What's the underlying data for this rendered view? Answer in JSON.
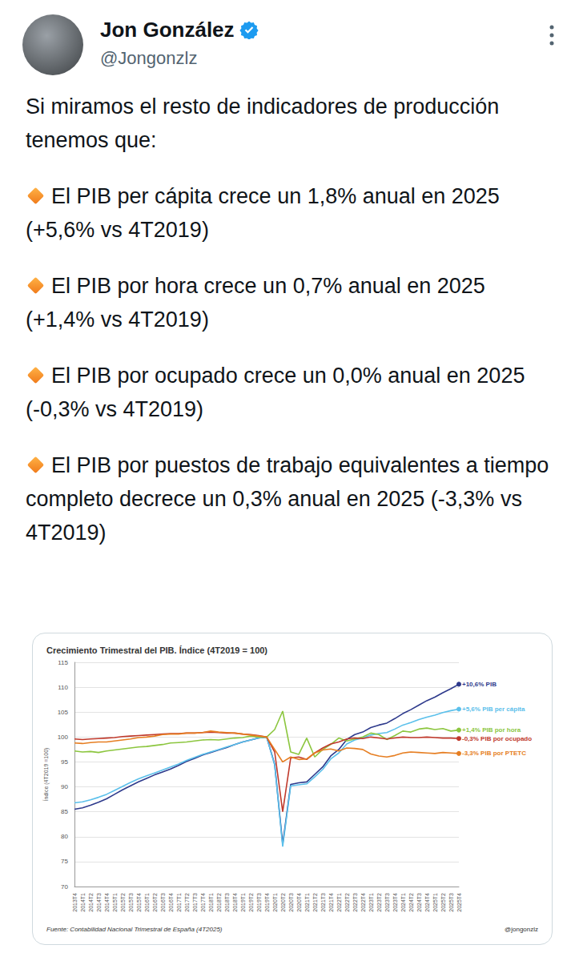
{
  "tweet": {
    "name": "Jon González",
    "handle": "@Jongonzlz",
    "intro": "Si miramos el resto de indicadores de producción tenemos que:",
    "bullets": [
      "El PIB per cápita crece un 1,8% anual en 2025 (+5,6% vs 4T2019)",
      "El PIB por hora crece un 0,7% anual en 2025 (+1,4% vs 4T2019)",
      "El PIB por ocupado crece un 0,0% anual en 2025 (-0,3% vs 4T2019)",
      "El PIB por puestos de trabajo equivalentes a tiempo completo decrece un 0,3% anual en 2025 (-3,3% vs 4T2019)"
    ]
  },
  "chart_data": {
    "type": "line",
    "title": "Crecimiento Trimestral del PIB. Índice (4T2019 = 100)",
    "ylabel": "Índice (4T2019 =100)",
    "annotations": [
      "Fuente: Contabilidad Nacional Trimestral de España (4T2025)",
      "@jongonzlz"
    ],
    "categories": [
      "2013T4",
      "2014T1",
      "2014T2",
      "2014T3",
      "2014T4",
      "2015T1",
      "2015T2",
      "2015T3",
      "2015T4",
      "2016T1",
      "2016T2",
      "2016T3",
      "2016T4",
      "2017T1",
      "2017T2",
      "2017T3",
      "2017T4",
      "2018T1",
      "2018T2",
      "2018T3",
      "2018T4",
      "2019T1",
      "2019T2",
      "2019T3",
      "2019T4",
      "2020T1",
      "2020T2",
      "2020T3",
      "2020T4",
      "2021T1",
      "2021T2",
      "2021T3",
      "2021T4",
      "2022T1",
      "2022T2",
      "2022T3",
      "2022T4",
      "2023T1",
      "2023T2",
      "2023T3",
      "2023T4",
      "2024T1",
      "2024T2",
      "2024T3",
      "2024T4",
      "2025T1",
      "2025T2",
      "2025T3",
      "2025T4"
    ],
    "series": [
      {
        "name": "+10,6% PIB",
        "color": "#2e3a8c",
        "values": [
          85.5,
          85.8,
          86.3,
          86.9,
          87.6,
          88.5,
          89.4,
          90.2,
          91.0,
          91.7,
          92.4,
          93.0,
          93.6,
          94.3,
          95.1,
          95.7,
          96.4,
          96.9,
          97.4,
          97.9,
          98.5,
          99.0,
          99.4,
          99.8,
          100,
          94.5,
          78.5,
          90.5,
          90.8,
          91.0,
          92.5,
          94.0,
          96.2,
          97.5,
          99.5,
          100.5,
          101.0,
          101.9,
          102.4,
          102.8,
          103.7,
          104.7,
          105.5,
          106.4,
          107.3,
          108.0,
          108.9,
          109.7,
          110.6
        ]
      },
      {
        "name": "+5,6% PIB per cápita",
        "color": "#5bc0eb",
        "values": [
          86.8,
          87.0,
          87.4,
          87.9,
          88.5,
          89.3,
          90.1,
          90.9,
          91.6,
          92.2,
          92.8,
          93.4,
          94.0,
          94.6,
          95.3,
          95.9,
          96.5,
          97.0,
          97.5,
          98.0,
          98.5,
          99.0,
          99.4,
          99.8,
          100,
          94.4,
          78.0,
          90.2,
          90.4,
          90.6,
          92.0,
          93.5,
          95.6,
          96.8,
          98.6,
          99.4,
          99.8,
          100.4,
          100.7,
          100.9,
          101.6,
          102.4,
          102.9,
          103.5,
          104.0,
          104.4,
          104.9,
          105.3,
          105.6
        ]
      },
      {
        "name": "+1,4% PIB por hora",
        "color": "#8cc63f",
        "values": [
          97.2,
          97.0,
          97.1,
          96.9,
          97.2,
          97.4,
          97.6,
          97.8,
          98.0,
          98.1,
          98.3,
          98.5,
          98.8,
          98.9,
          99.0,
          99.2,
          99.4,
          99.5,
          99.4,
          99.6,
          99.8,
          99.9,
          100.2,
          100.0,
          100,
          101.5,
          105.2,
          97.0,
          96.5,
          99.8,
          96.0,
          97.5,
          98.5,
          99.8,
          99.2,
          99.6,
          100.0,
          100.8,
          100.5,
          99.5,
          100.3,
          101.2,
          101.0,
          101.6,
          101.8,
          101.5,
          101.7,
          101.2,
          101.4
        ]
      },
      {
        "name": "-0,3% PIB por ocupado",
        "color": "#c0392b",
        "values": [
          99.6,
          99.5,
          99.6,
          99.7,
          99.8,
          99.9,
          100.1,
          100.2,
          100.3,
          100.4,
          100.5,
          100.6,
          100.7,
          100.7,
          100.8,
          100.8,
          100.9,
          101.0,
          100.9,
          100.8,
          100.8,
          100.6,
          100.5,
          100.3,
          100,
          97.0,
          85.0,
          95.8,
          96.0,
          95.5,
          96.8,
          97.8,
          98.6,
          99.0,
          99.6,
          99.8,
          99.7,
          100.0,
          99.8,
          99.6,
          99.8,
          100.0,
          99.9,
          99.9,
          100.0,
          99.9,
          99.8,
          99.8,
          99.7
        ]
      },
      {
        "name": "-3,3% PIB por PTETC",
        "color": "#e67e22",
        "values": [
          98.8,
          98.7,
          98.9,
          99.0,
          99.0,
          99.2,
          99.4,
          99.6,
          99.9,
          100.0,
          100.2,
          100.5,
          100.6,
          100.6,
          100.8,
          100.8,
          100.9,
          101.2,
          101.0,
          100.9,
          100.8,
          100.6,
          100.4,
          100.2,
          100,
          97.5,
          95.0,
          96.0,
          95.5,
          95.6,
          96.8,
          97.4,
          97.6,
          97.2,
          97.8,
          97.7,
          97.5,
          96.6,
          96.2,
          96.0,
          96.3,
          96.8,
          97.0,
          96.9,
          96.8,
          96.7,
          96.9,
          96.8,
          96.7
        ]
      }
    ],
    "ylim": [
      70,
      115
    ],
    "yticks": [
      70,
      75,
      80,
      85,
      90,
      95,
      100,
      105,
      110,
      115
    ],
    "grid": true
  }
}
